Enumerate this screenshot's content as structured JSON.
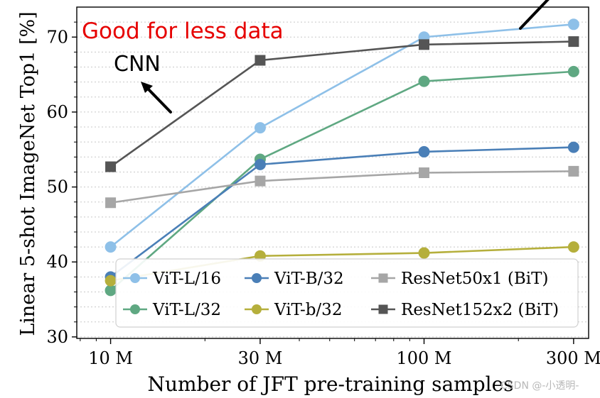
{
  "chart_data": {
    "type": "line",
    "title": "",
    "xlabel": "Number of JFT pre-training samples",
    "ylabel": "Linear 5-shot ImageNet Top1 [%]",
    "x": [
      10,
      30,
      100,
      300
    ],
    "x_tick_labels": [
      "10 M",
      "30 M",
      "100 M",
      "300 M"
    ],
    "x_scale": "log",
    "xlim": [
      7.8,
      335
    ],
    "y_ticks": [
      30,
      40,
      50,
      60,
      70
    ],
    "y_tick_labels": [
      "30",
      "40",
      "50",
      "60",
      "70"
    ],
    "ylim": [
      29.8,
      74
    ],
    "grid": "horizontal dotted",
    "legend_position": "bottom",
    "series": [
      {
        "name": "ViT-L/16",
        "marker": "circle",
        "color": "#8ec0e8",
        "values": [
          42.0,
          57.9,
          70.0,
          71.7
        ]
      },
      {
        "name": "ViT-L/32",
        "marker": "circle",
        "color": "#5fa882",
        "values": [
          36.2,
          53.7,
          64.1,
          65.4
        ]
      },
      {
        "name": "ViT-B/32",
        "marker": "circle",
        "color": "#4a7fb7",
        "values": [
          38.0,
          53.0,
          54.7,
          55.3
        ]
      },
      {
        "name": "ViT-b/32",
        "marker": "circle",
        "color": "#b5af3c",
        "values": [
          37.5,
          40.8,
          41.2,
          42.0
        ]
      },
      {
        "name": "ResNet50x1 (BiT)",
        "marker": "square",
        "color": "#a6a6a6",
        "values": [
          47.9,
          50.8,
          51.9,
          52.1
        ]
      },
      {
        "name": "ResNet152x2 (BiT)",
        "marker": "square",
        "color": "#555555",
        "values": [
          52.7,
          66.9,
          69.0,
          69.4
        ]
      }
    ],
    "annotations": {
      "red_note": "Good for less data",
      "cnn_label": "CNN"
    }
  },
  "watermark": "CSDN @-小透明-",
  "colors": {
    "annotation_red": "#e60000",
    "axis": "#000000",
    "grid": "#cccccc"
  }
}
